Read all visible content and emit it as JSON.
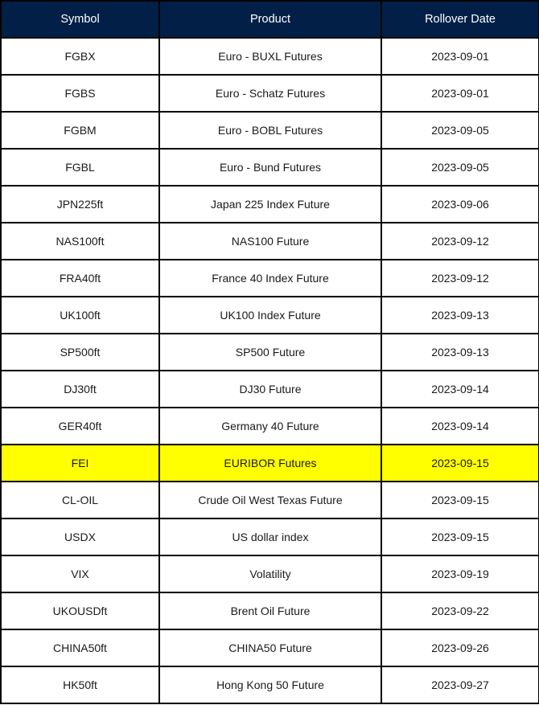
{
  "colors": {
    "header_bg": "#022047",
    "highlight": "#ffff00"
  },
  "table": {
    "headers": [
      "Symbol",
      "Product",
      "Rollover Date"
    ],
    "rows": [
      {
        "symbol": "FGBX",
        "product": "Euro - BUXL Futures",
        "date": "2023-09-01",
        "highlighted": false
      },
      {
        "symbol": "FGBS",
        "product": "Euro - Schatz Futures",
        "date": "2023-09-01",
        "highlighted": false
      },
      {
        "symbol": "FGBM",
        "product": "Euro - BOBL Futures",
        "date": "2023-09-05",
        "highlighted": false
      },
      {
        "symbol": "FGBL",
        "product": "Euro - Bund Futures",
        "date": "2023-09-05",
        "highlighted": false
      },
      {
        "symbol": "JPN225ft",
        "product": "Japan 225 Index Future",
        "date": "2023-09-06",
        "highlighted": false
      },
      {
        "symbol": "NAS100ft",
        "product": "NAS100 Future",
        "date": "2023-09-12",
        "highlighted": false
      },
      {
        "symbol": "FRA40ft",
        "product": "France 40 Index Future",
        "date": "2023-09-12",
        "highlighted": false
      },
      {
        "symbol": "UK100ft",
        "product": "UK100 Index Future",
        "date": "2023-09-13",
        "highlighted": false
      },
      {
        "symbol": "SP500ft",
        "product": "SP500 Future",
        "date": "2023-09-13",
        "highlighted": false
      },
      {
        "symbol": "DJ30ft",
        "product": "DJ30 Future",
        "date": "2023-09-14",
        "highlighted": false
      },
      {
        "symbol": "GER40ft",
        "product": "Germany 40 Future",
        "date": "2023-09-14",
        "highlighted": false
      },
      {
        "symbol": "FEI",
        "product": "EURIBOR Futures",
        "date": "2023-09-15",
        "highlighted": true
      },
      {
        "symbol": "CL-OIL",
        "product": "Crude Oil West Texas Future",
        "date": "2023-09-15",
        "highlighted": false
      },
      {
        "symbol": "USDX",
        "product": "US dollar index",
        "date": "2023-09-15",
        "highlighted": false
      },
      {
        "symbol": "VIX",
        "product": "Volatility",
        "date": "2023-09-19",
        "highlighted": false
      },
      {
        "symbol": "UKOUSDft",
        "product": "Brent Oil Future",
        "date": "2023-09-22",
        "highlighted": false
      },
      {
        "symbol": "CHINA50ft",
        "product": "CHINA50 Future",
        "date": "2023-09-26",
        "highlighted": false
      },
      {
        "symbol": "HK50ft",
        "product": "Hong Kong 50 Future",
        "date": "2023-09-27",
        "highlighted": false
      }
    ]
  }
}
